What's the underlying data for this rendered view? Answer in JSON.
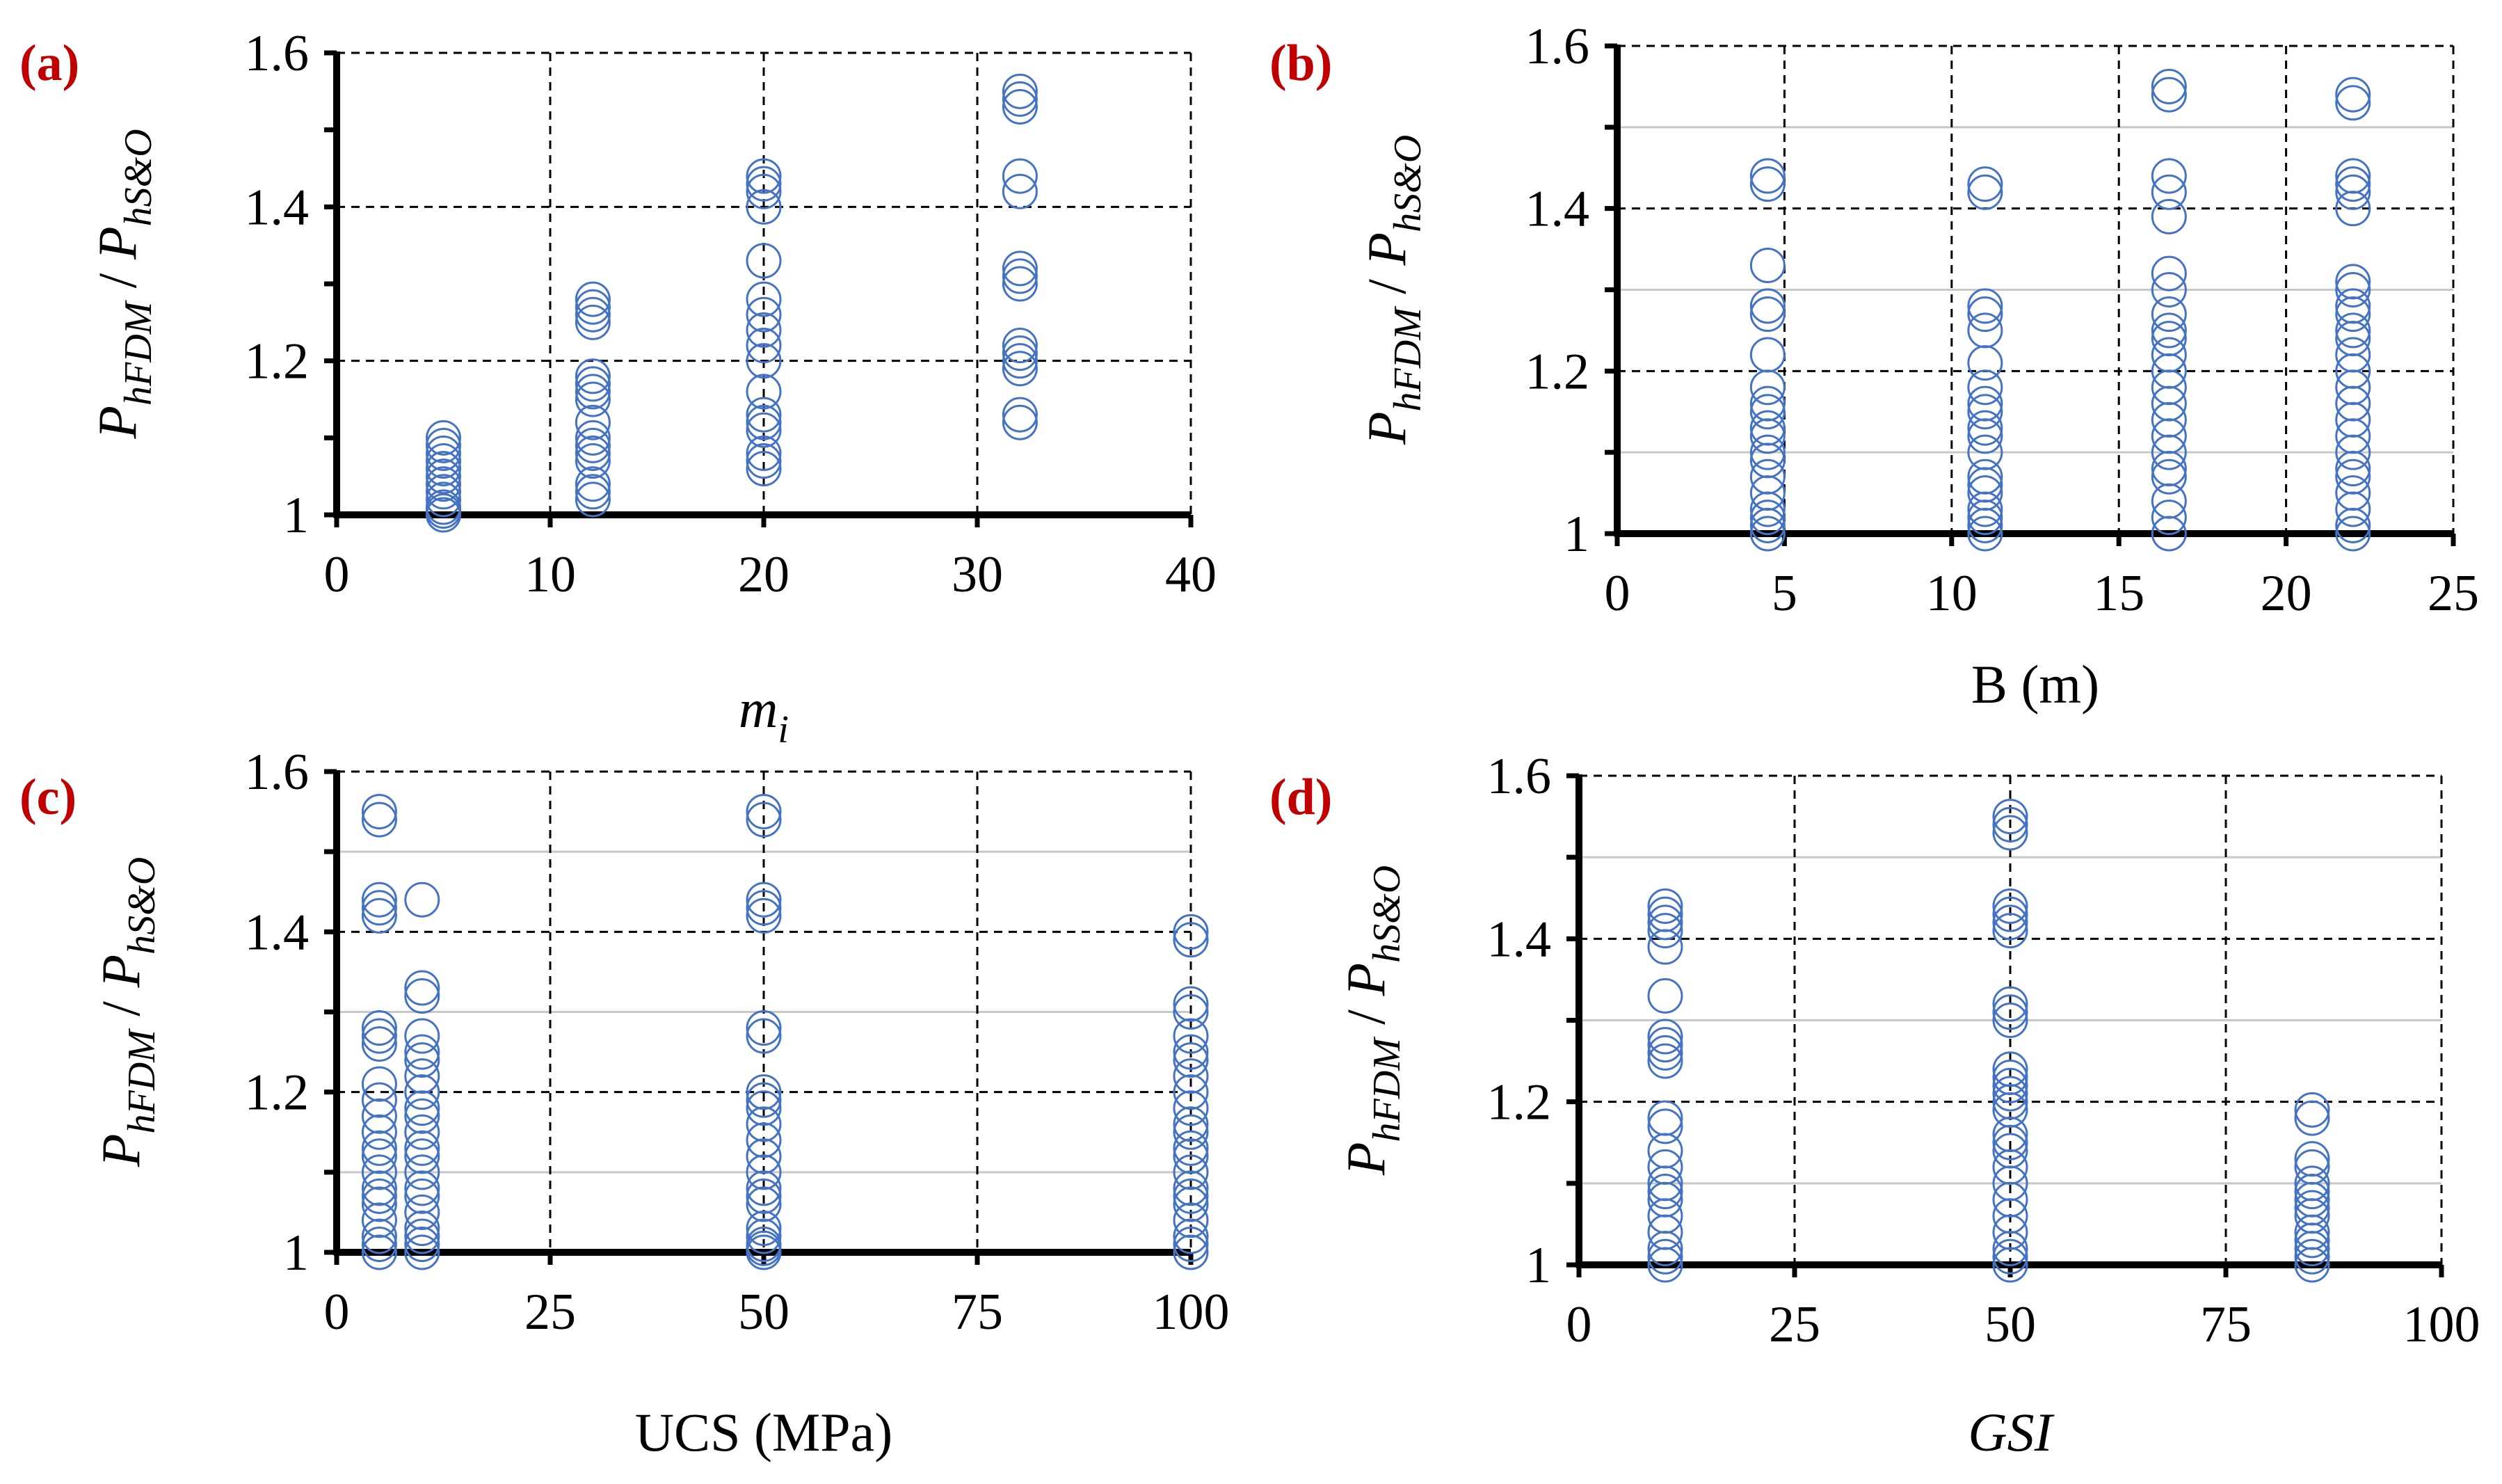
{
  "colors": {
    "marker": "#4472C4",
    "panel_letter": "#C00000",
    "axis": "#000000",
    "grid": "#000000"
  },
  "chart_data": [
    {
      "id": "a",
      "type": "scatter",
      "panel_label": "(a)",
      "ylabel": {
        "main": "P",
        "sub1": "hFDM",
        "sep": " / ",
        "main2": "P",
        "sub2": "hS&O"
      },
      "xlabel": {
        "main": "m",
        "sub": "i",
        "italic": true
      },
      "xlim": [
        0,
        40
      ],
      "xticks": [
        0,
        10,
        20,
        30,
        40
      ],
      "xtick_labels": [
        "0",
        "10",
        "20",
        "30",
        "40"
      ],
      "ylim": [
        1,
        1.6
      ],
      "yticks": [
        1,
        1.2,
        1.4,
        1.6
      ],
      "ytick_labels": [
        "1",
        "1.2",
        "1.4",
        "1.6"
      ],
      "minor_y_step": 0.1,
      "grid": "dashed",
      "series": [
        {
          "x": 5,
          "y": [
            1.0,
            1.005,
            1.01,
            1.02,
            1.03,
            1.04,
            1.05,
            1.06,
            1.07,
            1.08,
            1.09,
            1.1
          ]
        },
        {
          "x": 12,
          "y": [
            1.02,
            1.03,
            1.04,
            1.07,
            1.08,
            1.09,
            1.1,
            1.12,
            1.15,
            1.16,
            1.17,
            1.18,
            1.25,
            1.26,
            1.27,
            1.28
          ]
        },
        {
          "x": 20,
          "y": [
            1.06,
            1.07,
            1.08,
            1.11,
            1.12,
            1.13,
            1.16,
            1.2,
            1.22,
            1.24,
            1.26,
            1.28,
            1.33,
            1.4,
            1.42,
            1.43,
            1.44
          ]
        },
        {
          "x": 32,
          "y": [
            1.12,
            1.13,
            1.19,
            1.2,
            1.21,
            1.22,
            1.3,
            1.31,
            1.32,
            1.42,
            1.44,
            1.53,
            1.54,
            1.55
          ]
        }
      ]
    },
    {
      "id": "b",
      "type": "scatter",
      "panel_label": "(b)",
      "ylabel": {
        "main": "P",
        "sub1": "hFDM",
        "sep": " / ",
        "main2": "P",
        "sub2": "hS&O"
      },
      "xlabel": {
        "main": "B (m)",
        "sub": "",
        "italic": false
      },
      "xlim": [
        0,
        25
      ],
      "xticks": [
        0,
        5,
        10,
        15,
        20,
        25
      ],
      "xtick_labels": [
        "0",
        "5",
        "10",
        "15",
        "20",
        "25"
      ],
      "ylim": [
        1,
        1.6
      ],
      "yticks": [
        1,
        1.2,
        1.4,
        1.6
      ],
      "ytick_labels": [
        "1",
        "1.2",
        "1.4",
        "1.6"
      ],
      "minor_y_step": 0.1,
      "grid": "solid-minor",
      "series": [
        {
          "x": 4.5,
          "y": [
            1.0,
            1.01,
            1.02,
            1.03,
            1.05,
            1.07,
            1.09,
            1.1,
            1.12,
            1.13,
            1.15,
            1.16,
            1.18,
            1.22,
            1.27,
            1.28,
            1.33,
            1.43,
            1.44
          ]
        },
        {
          "x": 11,
          "y": [
            1.0,
            1.01,
            1.02,
            1.03,
            1.05,
            1.06,
            1.07,
            1.1,
            1.12,
            1.13,
            1.15,
            1.16,
            1.18,
            1.21,
            1.25,
            1.27,
            1.28,
            1.42,
            1.43
          ]
        },
        {
          "x": 16.5,
          "y": [
            1.0,
            1.02,
            1.04,
            1.07,
            1.08,
            1.1,
            1.12,
            1.14,
            1.16,
            1.18,
            1.2,
            1.22,
            1.24,
            1.25,
            1.27,
            1.3,
            1.32,
            1.39,
            1.42,
            1.44,
            1.54,
            1.55
          ]
        },
        {
          "x": 22,
          "y": [
            1.0,
            1.01,
            1.03,
            1.05,
            1.07,
            1.08,
            1.1,
            1.12,
            1.14,
            1.16,
            1.18,
            1.2,
            1.22,
            1.24,
            1.25,
            1.27,
            1.28,
            1.3,
            1.31,
            1.4,
            1.42,
            1.43,
            1.44,
            1.53,
            1.54
          ]
        }
      ]
    },
    {
      "id": "c",
      "type": "scatter",
      "panel_label": "(c)",
      "ylabel": {
        "main": "P",
        "sub1": "hFDM",
        "sep": " / ",
        "main2": "P",
        "sub2": "hS&O"
      },
      "xlabel": {
        "main": "UCS (MPa)",
        "sub": "",
        "italic": false
      },
      "xlim": [
        0,
        100
      ],
      "xticks": [
        0,
        25,
        50,
        75,
        100
      ],
      "xtick_labels": [
        "0",
        "25",
        "50",
        "75",
        "100"
      ],
      "ylim": [
        1,
        1.6
      ],
      "yticks": [
        1,
        1.2,
        1.4,
        1.6
      ],
      "ytick_labels": [
        "1",
        "1.2",
        "1.4",
        "1.6"
      ],
      "minor_y_step": 0.1,
      "grid": "dashed-plus-minor",
      "series": [
        {
          "x": 5,
          "y": [
            1.0,
            1.01,
            1.02,
            1.04,
            1.06,
            1.07,
            1.08,
            1.1,
            1.12,
            1.13,
            1.15,
            1.17,
            1.19,
            1.21,
            1.26,
            1.27,
            1.28,
            1.42,
            1.43,
            1.44,
            1.54,
            1.55
          ]
        },
        {
          "x": 10,
          "y": [
            1.0,
            1.01,
            1.02,
            1.03,
            1.05,
            1.07,
            1.08,
            1.1,
            1.12,
            1.13,
            1.15,
            1.17,
            1.18,
            1.2,
            1.22,
            1.24,
            1.25,
            1.27,
            1.32,
            1.33,
            1.44
          ]
        },
        {
          "x": 50,
          "y": [
            1.0,
            1.005,
            1.01,
            1.02,
            1.03,
            1.06,
            1.07,
            1.08,
            1.1,
            1.12,
            1.14,
            1.16,
            1.18,
            1.19,
            1.2,
            1.27,
            1.28,
            1.42,
            1.43,
            1.44,
            1.54,
            1.55
          ]
        },
        {
          "x": 100,
          "y": [
            1.0,
            1.01,
            1.02,
            1.04,
            1.06,
            1.07,
            1.08,
            1.1,
            1.12,
            1.13,
            1.15,
            1.16,
            1.18,
            1.2,
            1.22,
            1.24,
            1.25,
            1.27,
            1.3,
            1.31,
            1.39,
            1.4
          ]
        }
      ]
    },
    {
      "id": "d",
      "type": "scatter",
      "panel_label": "(d)",
      "ylabel": {
        "main": "P",
        "sub1": "hFDM",
        "sep": " / ",
        "main2": "P",
        "sub2": "hS&O"
      },
      "xlabel": {
        "main": "GSI",
        "sub": "",
        "italic": true
      },
      "xlim": [
        0,
        100
      ],
      "xticks": [
        0,
        25,
        50,
        75,
        100
      ],
      "xtick_labels": [
        "0",
        "25",
        "50",
        "75",
        "100"
      ],
      "ylim": [
        1,
        1.6
      ],
      "yticks": [
        1,
        1.2,
        1.4,
        1.6
      ],
      "ytick_labels": [
        "1",
        "1.2",
        "1.4",
        "1.6"
      ],
      "minor_y_step": 0.1,
      "grid": "dashed-plus-minor",
      "series": [
        {
          "x": 10,
          "y": [
            1.0,
            1.01,
            1.02,
            1.04,
            1.06,
            1.08,
            1.09,
            1.1,
            1.12,
            1.14,
            1.17,
            1.18,
            1.25,
            1.26,
            1.27,
            1.28,
            1.33,
            1.39,
            1.41,
            1.42,
            1.43,
            1.44
          ]
        },
        {
          "x": 50,
          "y": [
            1.0,
            1.01,
            1.02,
            1.04,
            1.06,
            1.08,
            1.1,
            1.12,
            1.14,
            1.15,
            1.16,
            1.19,
            1.2,
            1.21,
            1.22,
            1.23,
            1.24,
            1.3,
            1.31,
            1.32,
            1.41,
            1.42,
            1.43,
            1.44,
            1.53,
            1.54,
            1.55
          ]
        },
        {
          "x": 85,
          "y": [
            1.0,
            1.01,
            1.02,
            1.03,
            1.04,
            1.06,
            1.07,
            1.08,
            1.09,
            1.1,
            1.12,
            1.13,
            1.18,
            1.19
          ]
        }
      ]
    }
  ]
}
